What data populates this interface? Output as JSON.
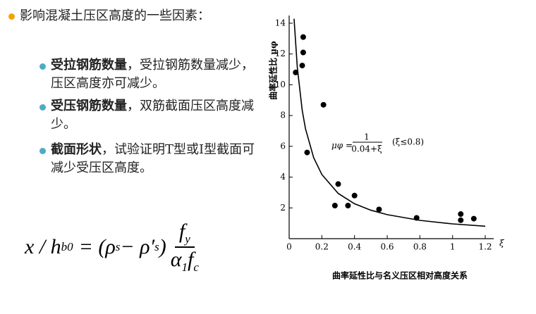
{
  "bullets": {
    "main": "影响混凝土压区高度的一些因素：",
    "items": [
      {
        "bold": "受拉钢筋数量",
        "text": "，受拉钢筋数量减少，压区高度亦可减少。"
      },
      {
        "bold": "受压钢筋数量",
        "text": "，双筋截面压区高度减少。"
      },
      {
        "bold": "截面形状",
        "text": "，试验证明T型或I型截面可减少受压区高度。"
      }
    ]
  },
  "formula": {
    "lhs": "x / h",
    "lhs_sub": "b0",
    "eq": "= (ρ",
    "s1": "s",
    "minus": " − ρ′",
    "s2": "s",
    "close": ")",
    "num": "f",
    "num_sub": "y",
    "den1": "α",
    "den1_sub": "1",
    "den2": "f",
    "den2_sub": "c"
  },
  "chart_data": {
    "type": "scatter",
    "title": "曲率延性比与名义压区相对高度关系",
    "y_label": "曲率延性比 μφ",
    "x_label": "ξ",
    "annotation": {
      "lhs": "μφ =",
      "num": "1",
      "den": "0.04+ξ",
      "cond": "(ξ≤0.8)"
    },
    "x": [
      0.04,
      0.086,
      0.086,
      0.08,
      0.11,
      0.21,
      0.28,
      0.3,
      0.36,
      0.4,
      0.55,
      0.78,
      1.05,
      1.05,
      1.13
    ],
    "values": [
      10.8,
      13.1,
      12.1,
      11.25,
      5.6,
      8.7,
      2.15,
      3.55,
      2.15,
      2.8,
      1.9,
      1.35,
      1.6,
      1.2,
      1.3
    ],
    "curve": {
      "x": [
        0.03,
        0.05,
        0.08,
        0.1,
        0.15,
        0.2,
        0.3,
        0.4,
        0.5,
        0.6,
        0.8,
        1.0,
        1.2
      ],
      "values": [
        14.29,
        11.11,
        8.33,
        7.14,
        5.26,
        4.17,
        2.94,
        2.27,
        1.85,
        1.56,
        1.19,
        0.96,
        0.81
      ]
    },
    "color": "#000000",
    "xlim": [
      0,
      1.25
    ],
    "ylim": [
      0,
      14.5
    ],
    "xticks": [
      0,
      0.2,
      0.4,
      0.6,
      0.8,
      1.0,
      1.2
    ],
    "yticks": [
      2,
      4,
      6,
      8,
      10,
      12,
      14
    ]
  }
}
